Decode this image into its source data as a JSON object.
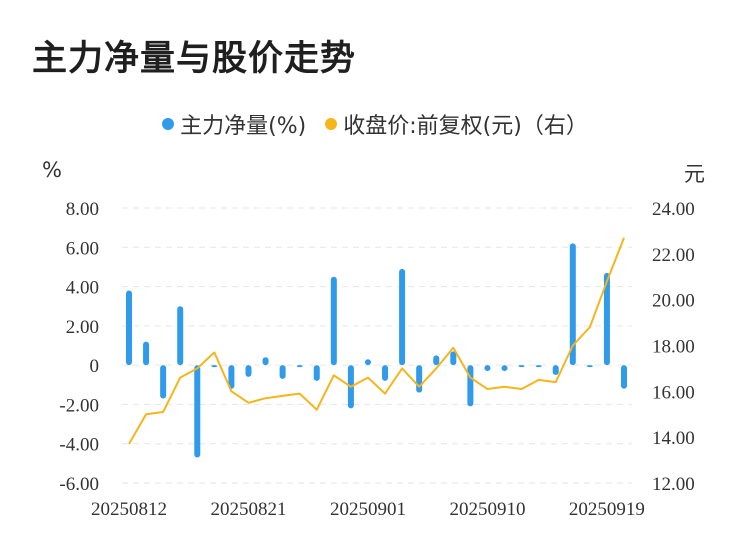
{
  "title": "主力净量与股价走势",
  "legend": {
    "series1_label": "主力净量(%)",
    "series2_label": "收盘价:前复权(元)（右）",
    "series1_color": "#2f9bea",
    "series2_color": "#f5b51b"
  },
  "left_unit": "%",
  "right_unit": "元",
  "chart_data": {
    "type": "bar",
    "title": "主力净量与股价走势",
    "x_tick_labels": [
      "20250812",
      "20250821",
      "20250901",
      "20250910",
      "20250919"
    ],
    "y_left_ticks": [
      "8.00",
      "6.00",
      "4.00",
      "2.00",
      "0",
      "-2.00",
      "-4.00",
      "-6.00"
    ],
    "y_right_ticks": [
      "24.00",
      "22.00",
      "20.00",
      "18.00",
      "16.00",
      "14.00",
      "12.00"
    ],
    "ylim_left": [
      -6,
      8
    ],
    "ylim_right": [
      12,
      24
    ],
    "grid": true,
    "legend_position": "top-center",
    "series": [
      {
        "name": "主力净量(%)",
        "type": "bar",
        "axis": "left",
        "values": [
          3.8,
          1.2,
          -1.7,
          3.0,
          -4.7,
          -0.1,
          -1.2,
          -0.6,
          0.4,
          -0.7,
          -0.1,
          -0.8,
          4.5,
          -2.2,
          0.3,
          -0.8,
          4.9,
          -1.4,
          0.5,
          0.7,
          -2.1,
          -0.3,
          -0.3,
          -0.1,
          -0.1,
          -0.5,
          6.2,
          -0.1,
          4.7,
          -1.2
        ]
      },
      {
        "name": "收盘价:前复权(元)（右）",
        "type": "line",
        "axis": "right",
        "values": [
          13.7,
          15.0,
          15.1,
          16.6,
          17.0,
          17.7,
          16.0,
          15.5,
          15.7,
          15.8,
          15.9,
          15.2,
          16.7,
          16.2,
          16.6,
          15.9,
          17.0,
          16.2,
          17.0,
          17.9,
          16.6,
          16.1,
          16.2,
          16.1,
          16.5,
          16.4,
          18.0,
          18.8,
          20.8,
          22.7
        ]
      }
    ]
  }
}
